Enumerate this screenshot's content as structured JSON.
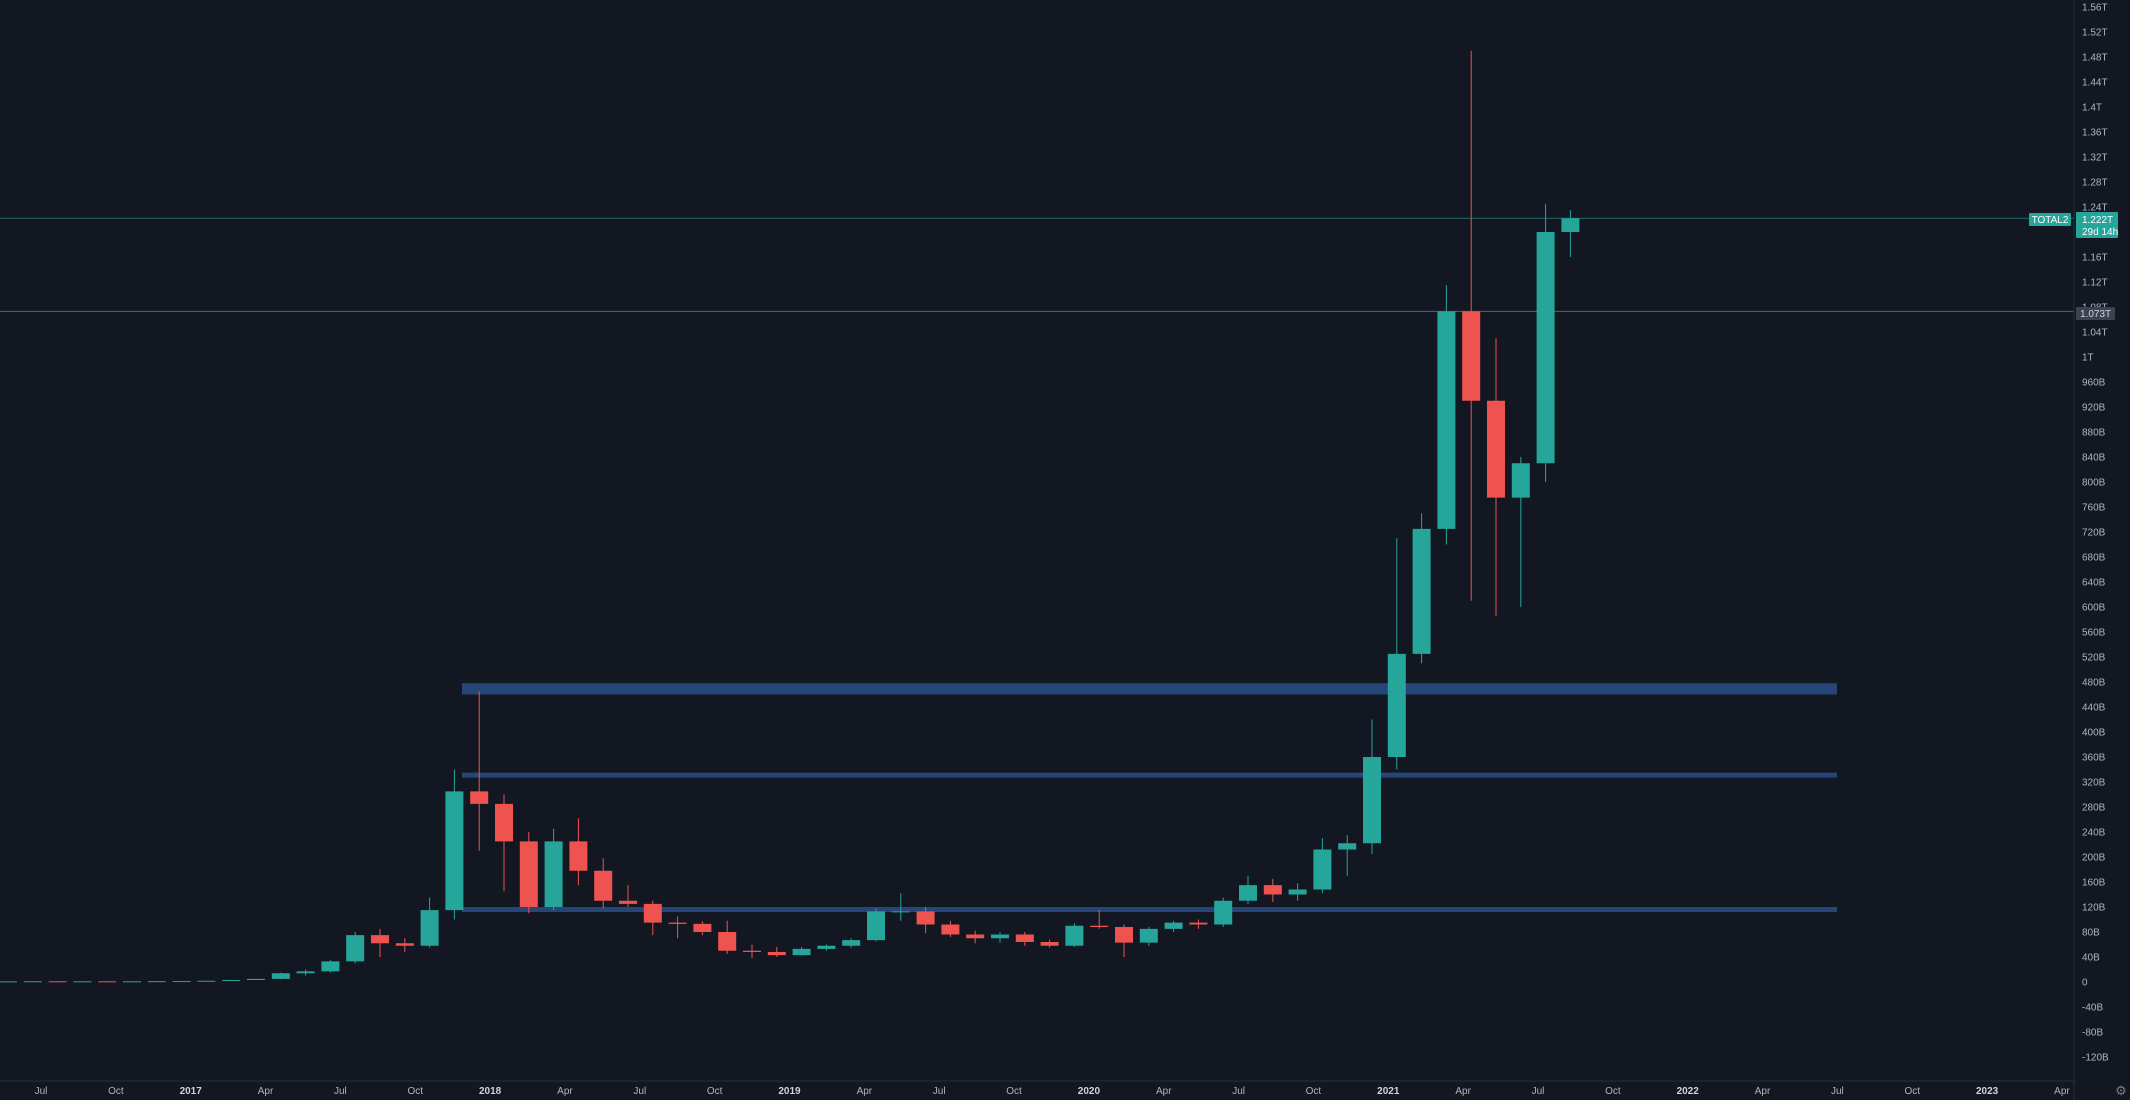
{
  "chart_data": {
    "type": "candlestick",
    "symbol": "TOTAL2",
    "timeframe": "1M",
    "ylim": [
      -130000000000,
      1570000000000
    ],
    "x_axis_labels": [
      "Jul",
      "Oct",
      "2017",
      "Apr",
      "Jul",
      "Oct",
      "2018",
      "Apr",
      "Jul",
      "Oct",
      "2019",
      "Apr",
      "Jul",
      "Oct",
      "2020",
      "Apr",
      "Jul",
      "Oct",
      "2021",
      "Apr",
      "Jul",
      "Oct",
      "2022",
      "Apr",
      "Jul",
      "Oct",
      "2023",
      "Apr"
    ],
    "y_axis_labels": [
      "1.56T",
      "1.52T",
      "1.48T",
      "1.44T",
      "1.4T",
      "1.36T",
      "1.32T",
      "1.28T",
      "1.24T",
      "1.2T",
      "1.16T",
      "1.12T",
      "1.08T",
      "1.04T",
      "1T",
      "960B",
      "920B",
      "880B",
      "840B",
      "800B",
      "760B",
      "720B",
      "680B",
      "640B",
      "600B",
      "560B",
      "520B",
      "480B",
      "440B",
      "400B",
      "360B",
      "320B",
      "280B",
      "240B",
      "200B",
      "160B",
      "120B",
      "80B",
      "40B",
      "0",
      "-40B",
      "-80B",
      "-120B"
    ],
    "candles": [
      {
        "t": "2016-06",
        "o": 0.8,
        "h": 1.2,
        "l": 0.5,
        "c": 1.0
      },
      {
        "t": "2016-07",
        "o": 1.0,
        "h": 1.5,
        "l": 0.8,
        "c": 1.2
      },
      {
        "t": "2016-08",
        "o": 1.2,
        "h": 1.5,
        "l": 0.9,
        "c": 1.0
      },
      {
        "t": "2016-09",
        "o": 1.0,
        "h": 1.3,
        "l": 0.9,
        "c": 1.1
      },
      {
        "t": "2016-10",
        "o": 1.1,
        "h": 1.4,
        "l": 0.9,
        "c": 1.0
      },
      {
        "t": "2016-11",
        "o": 1.0,
        "h": 1.3,
        "l": 0.9,
        "c": 1.1
      },
      {
        "t": "2016-12",
        "o": 1.1,
        "h": 1.5,
        "l": 1.0,
        "c": 1.3
      },
      {
        "t": "2017-01",
        "o": 1.3,
        "h": 1.6,
        "l": 1.1,
        "c": 1.5
      },
      {
        "t": "2017-02",
        "o": 1.5,
        "h": 2.2,
        "l": 1.3,
        "c": 2.0
      },
      {
        "t": "2017-03",
        "o": 2.0,
        "h": 3.5,
        "l": 1.8,
        "c": 3.2
      },
      {
        "t": "2017-04",
        "o": 3.2,
        "h": 5.5,
        "l": 3.0,
        "c": 5.0
      },
      {
        "t": "2017-05",
        "o": 5.0,
        "h": 15.0,
        "l": 4.5,
        "c": 14.0
      },
      {
        "t": "2017-06",
        "o": 14.0,
        "h": 20.0,
        "l": 10.0,
        "c": 17.0
      },
      {
        "t": "2017-07",
        "o": 17.0,
        "h": 35.0,
        "l": 15.0,
        "c": 33.0
      },
      {
        "t": "2017-08",
        "o": 33.0,
        "h": 80.0,
        "l": 30.0,
        "c": 75.0
      },
      {
        "t": "2017-09",
        "o": 75.0,
        "h": 85.0,
        "l": 40.0,
        "c": 62.0
      },
      {
        "t": "2017-10",
        "o": 62.0,
        "h": 70.0,
        "l": 48.0,
        "c": 58.0
      },
      {
        "t": "2017-11",
        "o": 58.0,
        "h": 135.0,
        "l": 55.0,
        "c": 115.0
      },
      {
        "t": "2017-12",
        "o": 115.0,
        "h": 340.0,
        "l": 100.0,
        "c": 305.0
      },
      {
        "t": "2018-01",
        "o": 305.0,
        "h": 465.0,
        "l": 210.0,
        "c": 285.0
      },
      {
        "t": "2018-02",
        "o": 285.0,
        "h": 300.0,
        "l": 145.0,
        "c": 225.0
      },
      {
        "t": "2018-03",
        "o": 225.0,
        "h": 240.0,
        "l": 110.0,
        "c": 120.0
      },
      {
        "t": "2018-04",
        "o": 120.0,
        "h": 245.0,
        "l": 115.0,
        "c": 225.0
      },
      {
        "t": "2018-05",
        "o": 225.0,
        "h": 262.0,
        "l": 155.0,
        "c": 178.0
      },
      {
        "t": "2018-06",
        "o": 178.0,
        "h": 198.0,
        "l": 118.0,
        "c": 130.0
      },
      {
        "t": "2018-07",
        "o": 130.0,
        "h": 155.0,
        "l": 120.0,
        "c": 125.0
      },
      {
        "t": "2018-08",
        "o": 125.0,
        "h": 130.0,
        "l": 75.0,
        "c": 95.0
      },
      {
        "t": "2018-09",
        "o": 95.0,
        "h": 105.0,
        "l": 70.0,
        "c": 93.0
      },
      {
        "t": "2018-10",
        "o": 93.0,
        "h": 97.0,
        "l": 75.0,
        "c": 80.0
      },
      {
        "t": "2018-11",
        "o": 80.0,
        "h": 98.0,
        "l": 45.0,
        "c": 50.0
      },
      {
        "t": "2018-12",
        "o": 50.0,
        "h": 60.0,
        "l": 38.0,
        "c": 48.0
      },
      {
        "t": "2019-01",
        "o": 48.0,
        "h": 56.0,
        "l": 40.0,
        "c": 43.0
      },
      {
        "t": "2019-02",
        "o": 43.0,
        "h": 56.0,
        "l": 42.0,
        "c": 53.0
      },
      {
        "t": "2019-03",
        "o": 53.0,
        "h": 60.0,
        "l": 50.0,
        "c": 58.0
      },
      {
        "t": "2019-04",
        "o": 58.0,
        "h": 70.0,
        "l": 55.0,
        "c": 67.0
      },
      {
        "t": "2019-05",
        "o": 67.0,
        "h": 118.0,
        "l": 65.0,
        "c": 113.0
      },
      {
        "t": "2019-06",
        "o": 113.0,
        "h": 142.0,
        "l": 98.0,
        "c": 113.0
      },
      {
        "t": "2019-07",
        "o": 113.0,
        "h": 120.0,
        "l": 78.0,
        "c": 92.0
      },
      {
        "t": "2019-08",
        "o": 92.0,
        "h": 98.0,
        "l": 72.0,
        "c": 76.0
      },
      {
        "t": "2019-09",
        "o": 76.0,
        "h": 82.0,
        "l": 62.0,
        "c": 70.0
      },
      {
        "t": "2019-10",
        "o": 70.0,
        "h": 80.0,
        "l": 63.0,
        "c": 76.0
      },
      {
        "t": "2019-11",
        "o": 76.0,
        "h": 80.0,
        "l": 58.0,
        "c": 64.0
      },
      {
        "t": "2019-12",
        "o": 64.0,
        "h": 68.0,
        "l": 55.0,
        "c": 58.0
      },
      {
        "t": "2020-01",
        "o": 58.0,
        "h": 94.0,
        "l": 56.0,
        "c": 90.0
      },
      {
        "t": "2020-02",
        "o": 90.0,
        "h": 115.0,
        "l": 85.0,
        "c": 88.0
      },
      {
        "t": "2020-03",
        "o": 88.0,
        "h": 92.0,
        "l": 40.0,
        "c": 63.0
      },
      {
        "t": "2020-04",
        "o": 63.0,
        "h": 88.0,
        "l": 58.0,
        "c": 85.0
      },
      {
        "t": "2020-05",
        "o": 85.0,
        "h": 98.0,
        "l": 80.0,
        "c": 95.0
      },
      {
        "t": "2020-06",
        "o": 95.0,
        "h": 100.0,
        "l": 85.0,
        "c": 92.0
      },
      {
        "t": "2020-07",
        "o": 92.0,
        "h": 135.0,
        "l": 88.0,
        "c": 130.0
      },
      {
        "t": "2020-08",
        "o": 130.0,
        "h": 170.0,
        "l": 125.0,
        "c": 155.0
      },
      {
        "t": "2020-09",
        "o": 155.0,
        "h": 165.0,
        "l": 128.0,
        "c": 140.0
      },
      {
        "t": "2020-10",
        "o": 140.0,
        "h": 158.0,
        "l": 130.0,
        "c": 148.0
      },
      {
        "t": "2020-11",
        "o": 148.0,
        "h": 230.0,
        "l": 142.0,
        "c": 212.0
      },
      {
        "t": "2020-12",
        "o": 212.0,
        "h": 235.0,
        "l": 170.0,
        "c": 222.0
      },
      {
        "t": "2021-01",
        "o": 222.0,
        "h": 420.0,
        "l": 205.0,
        "c": 360.0
      },
      {
        "t": "2021-02",
        "o": 360.0,
        "h": 710.0,
        "l": 340.0,
        "c": 525.0
      },
      {
        "t": "2021-03",
        "o": 525.0,
        "h": 750.0,
        "l": 510.0,
        "c": 725.0
      },
      {
        "t": "2021-04",
        "o": 725.0,
        "h": 1115.0,
        "l": 700.0,
        "c": 1073.0
      },
      {
        "t": "2021-05",
        "o": 1073.0,
        "h": 1490.0,
        "l": 610.0,
        "c": 930.0
      },
      {
        "t": "2021-06",
        "o": 930.0,
        "h": 1030.0,
        "l": 585.0,
        "c": 775.0
      },
      {
        "t": "2021-07",
        "o": 775.0,
        "h": 840.0,
        "l": 600.0,
        "c": 830.0
      },
      {
        "t": "2021-08",
        "o": 830.0,
        "h": 1245.0,
        "l": 800.0,
        "c": 1200.0
      },
      {
        "t": "2021-09",
        "o": 1200.0,
        "h": 1235.0,
        "l": 1160.0,
        "c": 1222.0
      }
    ],
    "candle_units": "billions USD",
    "support_zones": [
      {
        "from": 460,
        "to": 478
      },
      {
        "from": 327,
        "to": 335
      },
      {
        "from": 112,
        "to": 120
      }
    ],
    "horizontal_lines": [
      1073
    ],
    "price_label": {
      "symbol": "TOTAL2",
      "price": "1.222T",
      "countdown": "29d 14h"
    },
    "marker_label": {
      "price": "1.073T"
    },
    "colors": {
      "background": "#131722",
      "up": "#26a69a",
      "down": "#ef5350",
      "zone": "#2a4f86",
      "text": "#b2b5be",
      "axis_line": "#2a2e39"
    }
  },
  "icons": {
    "settings": "gear-icon"
  }
}
